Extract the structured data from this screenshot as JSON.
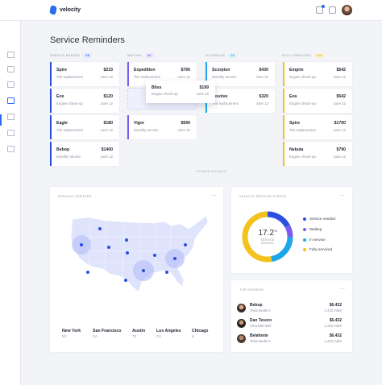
{
  "app": {
    "name": "velocity"
  },
  "page": {
    "title": "Service Reminders"
  },
  "board": {
    "columns": [
      {
        "label": "SERVICE NEEDED",
        "count": "76",
        "cards": [
          {
            "name": "Spire",
            "price": "$233",
            "service": "Tire replacement",
            "date": "June 12"
          },
          {
            "name": "Eos",
            "price": "$120",
            "service": "Engine check-up",
            "date": "June 12"
          },
          {
            "name": "Eagle",
            "price": "$180",
            "service": "Tire replacement",
            "date": "June 12"
          },
          {
            "name": "Bebop",
            "price": "$1400",
            "service": "Monthly service",
            "date": "June 12"
          }
        ]
      },
      {
        "label": "WAITING",
        "count": "46",
        "cards": [
          {
            "name": "Expedition",
            "price": "$766",
            "service": "Tire replacement",
            "date": "June 12"
          },
          {
            "name": "Vigor",
            "price": "$690",
            "service": "Monthly service",
            "date": "June 12"
          }
        ],
        "dragging_card": {
          "name": "Bliss",
          "price": "$199",
          "service": "Engine check-up",
          "date": "June 12"
        }
      },
      {
        "label": "IN SERVICE",
        "count": "28",
        "cards": [
          {
            "name": "Scorpion",
            "price": "$430",
            "service": "Monthly service",
            "date": "June 12"
          },
          {
            "name": "Vesolve",
            "price": "$320",
            "service": "Tire replacement",
            "date": "June 12"
          }
        ]
      },
      {
        "label": "FULLY SERVICED",
        "count": "170",
        "cards": [
          {
            "name": "Empire",
            "price": "$542",
            "service": "Engine check-up",
            "date": "June 12"
          },
          {
            "name": "Eos",
            "price": "$542",
            "service": "Engine check-up",
            "date": "June 12"
          },
          {
            "name": "Spire",
            "price": "$1700",
            "service": "Tire replacement",
            "date": "June 12"
          },
          {
            "name": "Nebula",
            "price": "$790",
            "service": "Engine check-up",
            "date": "June 12"
          }
        ]
      }
    ],
    "expand_label": "EXPAND BOARDS"
  },
  "service_centers": {
    "title": "SERVICE CENTERS",
    "menu": "...",
    "cities": [
      {
        "name": "New York",
        "state": "NY"
      },
      {
        "name": "San Francisco",
        "state": "CA"
      },
      {
        "name": "Austin",
        "state": "TX"
      },
      {
        "name": "Los Angeles",
        "state": "CA"
      },
      {
        "name": "Chicago",
        "state": "IL"
      }
    ]
  },
  "status": {
    "title": "VEHICLE SERVICE STATUS",
    "menu": "...",
    "value": "17.2",
    "unit": "%",
    "caption_line1": "SERVICE",
    "caption_line2": "NEEDED",
    "legend": [
      {
        "label": "Service needed",
        "color": "#2b4fe0"
      },
      {
        "label": "Waiting",
        "color": "#7b5cf0"
      },
      {
        "label": "In service",
        "color": "#1ea7e8"
      },
      {
        "label": "Fully serviced",
        "color": "#f4c21c"
      }
    ],
    "segments": [
      {
        "label": "Service needed",
        "fraction": 0.172
      },
      {
        "label": "Waiting",
        "fraction": 0.08
      },
      {
        "label": "In service",
        "fraction": 0.22
      },
      {
        "label": "Fully serviced",
        "fraction": 0.528
      }
    ]
  },
  "drivers": {
    "title": "TOP DRIVERS",
    "menu": "...",
    "list": [
      {
        "name": "Bebop",
        "car": "Tesla Model s",
        "amount": "$6.432",
        "miles": "1,232 miles"
      },
      {
        "name": "Dan Tesoro",
        "car": "Chevrolet Bolt",
        "amount": "$6.432",
        "miles": "1,232 miles"
      },
      {
        "name": "Belafonte",
        "car": "Tesla Model s",
        "amount": "$6.432",
        "miles": "1,232 miles"
      }
    ]
  }
}
